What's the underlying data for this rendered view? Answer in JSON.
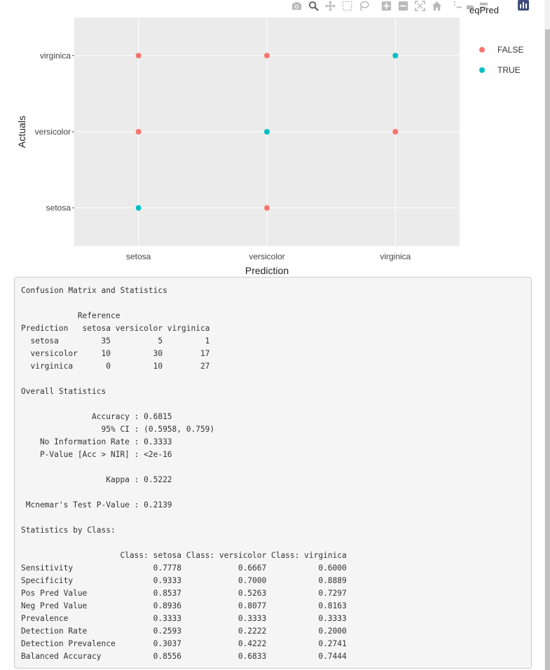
{
  "modebar": {
    "icons": [
      "camera-icon",
      "zoom-icon",
      "pan-icon",
      "box-select-icon",
      "lasso-icon",
      "zoom-in-icon",
      "zoom-out-icon",
      "autoscale-icon",
      "reset-axes-icon",
      "spike-lines-icon",
      "hover-closest-icon",
      "hover-compare-icon",
      "plotly-logo-icon"
    ]
  },
  "colors": {
    "false": "#f8766d",
    "true": "#00bfc4",
    "panel": "#ebebeb",
    "grid": "#ffffff"
  },
  "chart_data": {
    "type": "scatter",
    "xlabel": "Prediction",
    "ylabel": "Actuals",
    "x_categories": [
      "setosa",
      "versicolor",
      "virginica"
    ],
    "y_categories": [
      "setosa",
      "versicolor",
      "virginica"
    ],
    "legend_title": "eqPred",
    "legend_position": "right",
    "grid": true,
    "series": [
      {
        "name": "FALSE",
        "color": "#f8766d",
        "points": [
          {
            "x": "setosa",
            "y": "virginica"
          },
          {
            "x": "versicolor",
            "y": "virginica"
          },
          {
            "x": "setosa",
            "y": "versicolor"
          },
          {
            "x": "virginica",
            "y": "versicolor"
          },
          {
            "x": "versicolor",
            "y": "setosa"
          }
        ]
      },
      {
        "name": "TRUE",
        "color": "#00bfc4",
        "points": [
          {
            "x": "virginica",
            "y": "virginica"
          },
          {
            "x": "versicolor",
            "y": "versicolor"
          },
          {
            "x": "setosa",
            "y": "setosa"
          }
        ]
      }
    ]
  },
  "console": {
    "lines": [
      "Confusion Matrix and Statistics",
      "",
      "            Reference",
      "Prediction   setosa versicolor virginica",
      "  setosa         35          5         1",
      "  versicolor     10         30        17",
      "  virginica       0         10        27",
      "",
      "Overall Statistics",
      "",
      "               Accuracy : 0.6815",
      "                 95% CI : (0.5958, 0.759)",
      "    No Information Rate : 0.3333",
      "    P-Value [Acc > NIR] : <2e-16",
      "",
      "                  Kappa : 0.5222",
      "",
      " Mcnemar's Test P-Value : 0.2139",
      "",
      "Statistics by Class:",
      "",
      "                     Class: setosa Class: versicolor Class: virginica",
      "Sensitivity                 0.7778            0.6667           0.6000",
      "Specificity                 0.9333            0.7000           0.8889",
      "Pos Pred Value              0.8537            0.5263           0.7297",
      "Neg Pred Value              0.8936            0.8077           0.8163",
      "Prevalence                  0.3333            0.3333           0.3333",
      "Detection Rate              0.2593            0.2222           0.2000",
      "Detection Prevalence        0.3037            0.4222           0.2741",
      "Balanced Accuracy           0.8556            0.6833           0.7444"
    ]
  }
}
